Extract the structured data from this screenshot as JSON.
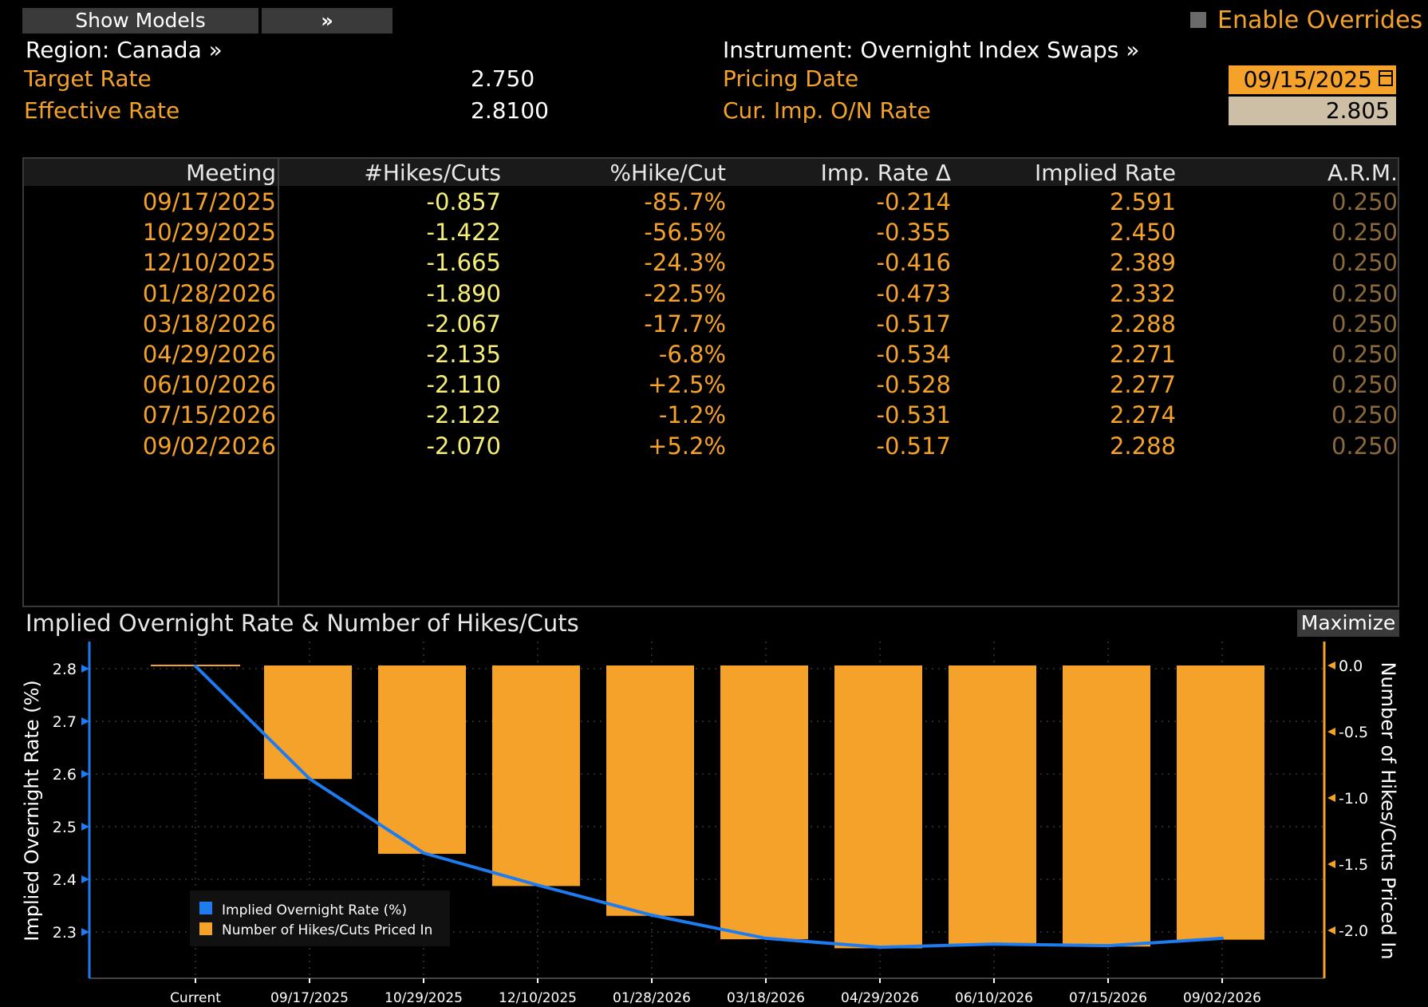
{
  "toolbar": {
    "show_models_label": "Show Models",
    "expand_label": "»",
    "enable_overrides_label": "Enable Overrides"
  },
  "header": {
    "region": "Region: Canada »",
    "instrument": "Instrument: Overnight Index Swaps »",
    "target_rate_label": "Target Rate",
    "target_rate_value": "2.750",
    "effective_rate_label": "Effective Rate",
    "effective_rate_value": "2.8100",
    "pricing_date_label": "Pricing Date",
    "pricing_date_value": "09/15/2025",
    "cur_rate_label": "Cur. Imp. O/N Rate",
    "cur_rate_value": "2.805"
  },
  "table": {
    "columns": [
      "Meeting",
      "#Hikes/Cuts",
      "%Hike/Cut",
      "Imp. Rate Δ",
      "Implied Rate",
      "A.R.M."
    ],
    "rows": [
      [
        "09/17/2025",
        "-0.857",
        "-85.7%",
        "-0.214",
        "2.591",
        "0.250"
      ],
      [
        "10/29/2025",
        "-1.422",
        "-56.5%",
        "-0.355",
        "2.450",
        "0.250"
      ],
      [
        "12/10/2025",
        "-1.665",
        "-24.3%",
        "-0.416",
        "2.389",
        "0.250"
      ],
      [
        "01/28/2026",
        "-1.890",
        "-22.5%",
        "-0.473",
        "2.332",
        "0.250"
      ],
      [
        "03/18/2026",
        "-2.067",
        "-17.7%",
        "-0.517",
        "2.288",
        "0.250"
      ],
      [
        "04/29/2026",
        "-2.135",
        "-6.8%",
        "-0.534",
        "2.271",
        "0.250"
      ],
      [
        "06/10/2026",
        "-2.110",
        "+2.5%",
        "-0.528",
        "2.277",
        "0.250"
      ],
      [
        "07/15/2026",
        "-2.122",
        "-1.2%",
        "-0.531",
        "2.274",
        "0.250"
      ],
      [
        "09/02/2026",
        "-2.070",
        "+5.2%",
        "-0.517",
        "2.288",
        "0.250"
      ]
    ]
  },
  "chart": {
    "title": "Implied Overnight Rate & Number of Hikes/Cuts",
    "maximize_label": "Maximize"
  },
  "colors": {
    "orange": "#f5a22a",
    "blue": "#1f7cf0",
    "yellow": "#f5ef78"
  },
  "chart_data": {
    "type": "bar",
    "title": "Implied Overnight Rate & Number of Hikes/Cuts",
    "categories": [
      "Current",
      "09/17/2025",
      "10/29/2025",
      "12/10/2025",
      "01/28/2026",
      "03/18/2026",
      "04/29/2026",
      "06/10/2026",
      "07/15/2026",
      "09/02/2026"
    ],
    "series": [
      {
        "name": "Implied Overnight Rate (%)",
        "type": "line",
        "axis": "left",
        "values": [
          2.805,
          2.591,
          2.45,
          2.389,
          2.332,
          2.288,
          2.271,
          2.277,
          2.274,
          2.288
        ]
      },
      {
        "name": "Number of Hikes/Cuts Priced In",
        "type": "bar",
        "axis": "right",
        "values": [
          0,
          -0.857,
          -1.422,
          -1.665,
          -1.89,
          -2.067,
          -2.135,
          -2.11,
          -2.122,
          -2.07
        ]
      }
    ],
    "ylabel_left": "Implied Overnight Rate (%)",
    "ylabel_right": "Number of Hikes/Cuts Priced In",
    "ylim_left": [
      2.25,
      2.85
    ],
    "ylim_right": [
      -2.25,
      0.1
    ],
    "yticks_left": [
      "2.8",
      "2.7",
      "2.6",
      "2.5",
      "2.4",
      "2.3"
    ],
    "yticks_right": [
      "0.0",
      "-0.5",
      "-1.0",
      "-1.5",
      "-2.0"
    ],
    "legend": [
      "Implied Overnight Rate (%)",
      "Number of Hikes/Cuts Priced In"
    ],
    "legend_position": "bottom-left",
    "grid": true
  }
}
